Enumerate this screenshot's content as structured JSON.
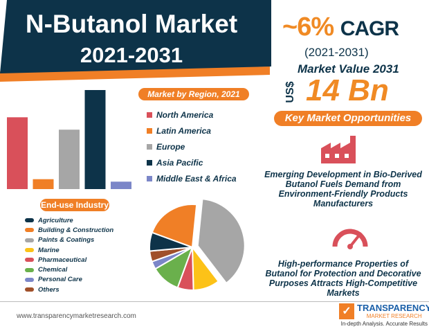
{
  "header": {
    "title": "N-Butanol Market",
    "years": "2021-2031"
  },
  "stats": {
    "cagr": "~6%",
    "cagr_label": "CAGR",
    "period": "(2021-2031)",
    "market_value_label": "Market Value 2031",
    "currency": "US$",
    "market_value": "14 Bn"
  },
  "sections": {
    "region_title": "Market by Region, 2021",
    "industry_title": "End-use Industry",
    "opportunities_title": "Key Market Opportunities"
  },
  "opportunities": [
    "Emerging Development in Bio-Derived Butanol Fuels Demand from Environment-Friendly Products Manufacturers",
    "High-performance Properties of Butanol for Protection and Decorative Purposes Attracts High-Competitive Markets"
  ],
  "footer": {
    "url": "www.transparencymarketresearch.com",
    "logo_name": "TRANSPARENCY",
    "logo_sub": "MARKET RESEARCH",
    "logo_tag": "In-depth Analysis. Accurate Results"
  },
  "colors": {
    "navy": "#0d3349",
    "orange": "#f07f26"
  },
  "chart_data": [
    {
      "type": "bar",
      "title": "Market by Region, 2021",
      "categories": [
        "North America",
        "Latin America",
        "Europe",
        "Asia Pacific",
        "Middle East & Africa"
      ],
      "values": [
        29,
        4,
        24,
        40,
        3
      ],
      "colors": [
        "#d9505a",
        "#f07f26",
        "#a6a6a6",
        "#0d3349",
        "#7b86c8"
      ]
    },
    {
      "type": "pie",
      "title": "End-use Industry",
      "categories": [
        "Agriculture",
        "Building & Construction",
        "Paints & Coatings",
        "Marine",
        "Pharmaceutical",
        "Chemical",
        "Personal Care",
        "Others"
      ],
      "values": [
        7,
        21,
        38,
        10,
        6,
        11,
        3,
        4
      ],
      "colors": [
        "#0d3349",
        "#f07f26",
        "#a6a6a6",
        "#fcc218",
        "#d9505a",
        "#6ab04c",
        "#7b86c8",
        "#a0502a"
      ]
    }
  ]
}
